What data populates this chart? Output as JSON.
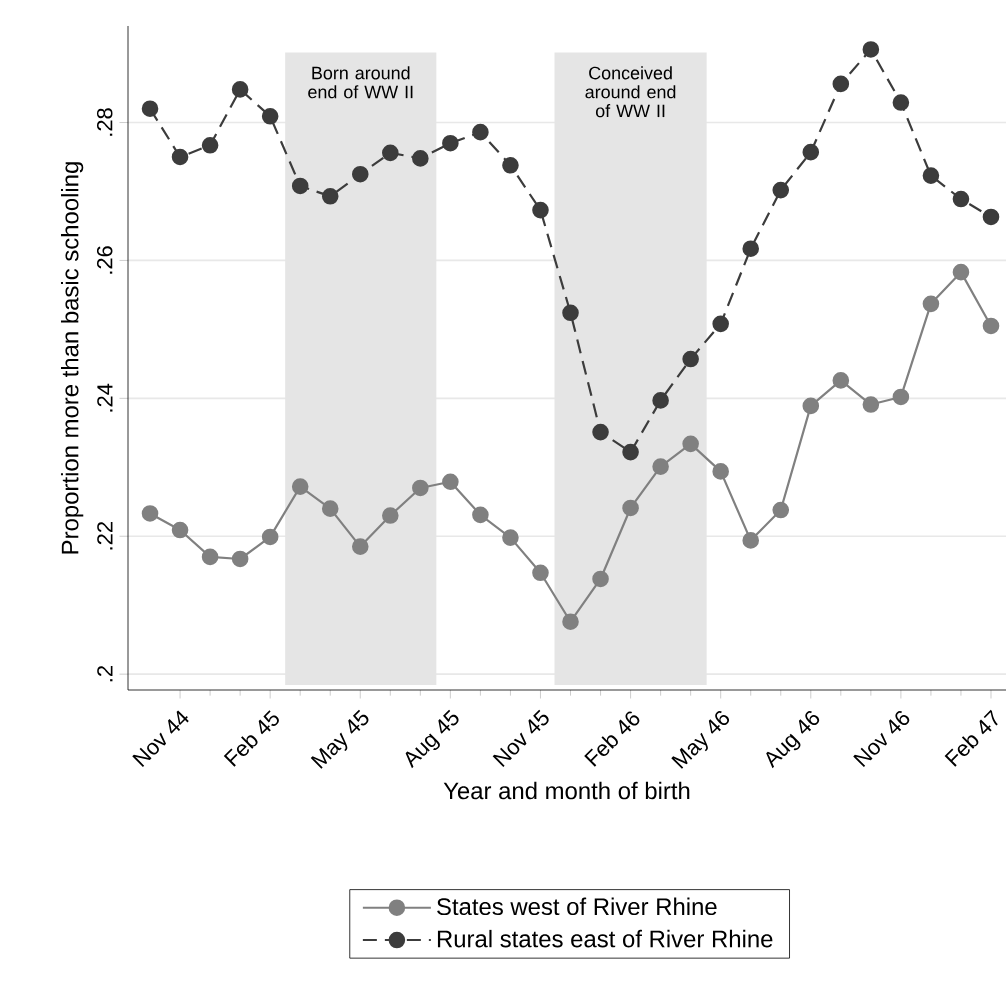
{
  "chart_data": {
    "type": "line",
    "xlabel": "Year and month of birth",
    "ylabel": "Proportion more than basic schooling",
    "x": [
      "1944-10",
      "1944-11",
      "1944-12",
      "1945-01",
      "1945-02",
      "1945-03",
      "1945-04",
      "1945-05",
      "1945-06",
      "1945-07",
      "1945-08",
      "1945-09",
      "1945-10",
      "1945-11",
      "1945-12",
      "1946-01",
      "1946-02",
      "1946-03",
      "1946-04",
      "1946-05",
      "1946-06",
      "1946-07",
      "1946-08",
      "1946-09",
      "1946-10",
      "1946-11",
      "1946-12",
      "1947-01",
      "1947-02"
    ],
    "series": [
      {
        "name": "States west of River Rhine",
        "color": "#808080",
        "line_style": "solid",
        "values": [
          0.2233,
          0.2209,
          0.217,
          0.2167,
          0.2199,
          0.2272,
          0.224,
          0.2185,
          0.223,
          0.227,
          0.2279,
          0.2231,
          0.2198,
          0.2147,
          0.2076,
          0.2138,
          0.2241,
          0.2301,
          0.2334,
          0.2294,
          0.2194,
          0.2238,
          0.2389,
          0.2426,
          0.2391,
          0.2402,
          0.2537,
          0.2583,
          0.2505
        ]
      },
      {
        "name": "Rural states east of River Rhine",
        "color": "#3c3c3c",
        "line_style": "dashed",
        "values": [
          0.282,
          0.275,
          0.2767,
          0.2848,
          0.2809,
          0.2708,
          0.2693,
          0.2725,
          0.2756,
          0.2748,
          0.277,
          0.2786,
          0.2738,
          0.2673,
          0.2524,
          0.2351,
          0.2322,
          0.2397,
          0.2457,
          0.2508,
          0.2617,
          0.2702,
          0.2757,
          0.2856,
          0.2906,
          0.2829,
          0.2723,
          0.2689,
          0.2663
        ]
      }
    ],
    "xlim": [
      "1944-09-09",
      "1947-02-16"
    ],
    "xticks": [
      {
        "value": "1944-11",
        "label": "Nov 44"
      },
      {
        "value": "1945-02",
        "label": "Feb 45"
      },
      {
        "value": "1945-05",
        "label": "May 45"
      },
      {
        "value": "1945-08",
        "label": "Aug 45"
      },
      {
        "value": "1945-11",
        "label": "Nov 45"
      },
      {
        "value": "1946-02",
        "label": "Feb 46"
      },
      {
        "value": "1946-05",
        "label": "May 46"
      },
      {
        "value": "1946-08",
        "label": "Aug 46"
      },
      {
        "value": "1946-11",
        "label": "Nov 46"
      },
      {
        "value": "1947-02",
        "label": "Feb 47"
      }
    ],
    "ylim": [
      0.1977,
      0.294
    ],
    "yticks": [
      {
        "value": 0.2,
        "label": ".2"
      },
      {
        "value": 0.22,
        "label": ".22"
      },
      {
        "value": 0.24,
        "label": ".24"
      },
      {
        "value": 0.26,
        "label": ".26"
      },
      {
        "value": 0.28,
        "label": ".28"
      }
    ],
    "bands": [
      {
        "axis": "x",
        "from": "1945-02-16",
        "to": "1945-07-17",
        "label": "Born around end of WW II",
        "color": "#e5e5e5"
      },
      {
        "axis": "x",
        "from": "1945-11-15",
        "to": "1946-04-17",
        "label": "Conceived around end of WW II",
        "color": "#e5e5e5"
      }
    ],
    "grid": "y",
    "legend": "bottom",
    "marker": "circle"
  }
}
